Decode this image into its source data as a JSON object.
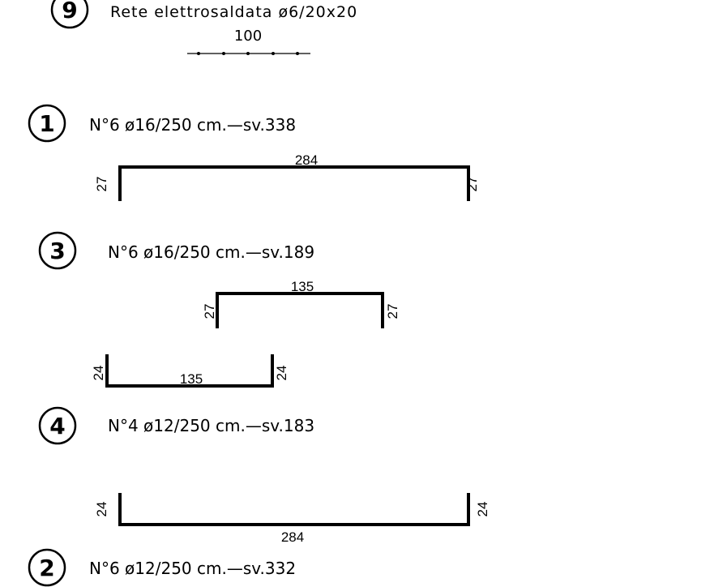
{
  "mesh": {
    "marker": "9",
    "title": "Rete elettrosaldata ø6/20x20",
    "length": "100"
  },
  "bars": [
    {
      "marker": "1",
      "spec": "N°6  ø16/250 cm.—sv.338",
      "length": "284",
      "left_leg": "27",
      "right_leg": "27"
    },
    {
      "marker": "3",
      "spec": "N°6  ø16/250 cm.—sv.189",
      "length": "135",
      "left_leg": "27",
      "right_leg": "27"
    },
    {
      "marker": "4",
      "spec": "N°4  ø12/250 cm.—sv.183",
      "length": "135",
      "left_leg": "24",
      "right_leg": "24"
    },
    {
      "marker": "2",
      "spec": "N°6  ø12/250 cm.—sv.332",
      "length": "284",
      "left_leg": "24",
      "right_leg": "24"
    }
  ]
}
